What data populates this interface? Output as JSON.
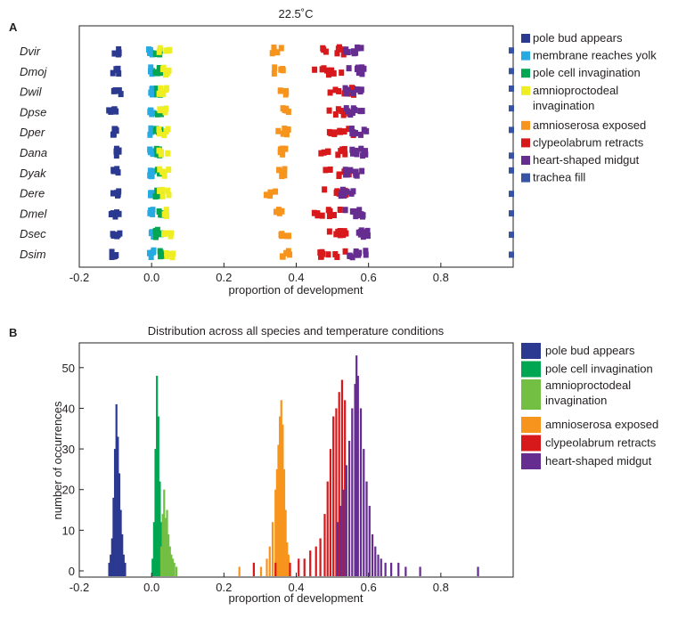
{
  "chart_data": [
    {
      "panel": "A",
      "type": "scatter",
      "title": "22.5˚C",
      "xlabel": "proportion of development",
      "ylabel": "",
      "xlim": [
        -0.2,
        1.0
      ],
      "xticks": [
        -0.2,
        0.0,
        0.2,
        0.4,
        0.6,
        0.8
      ],
      "xtick_labels": [
        "-0.2",
        "0.0",
        "0.2",
        "0.4",
        "0.6",
        "0.8"
      ],
      "species": [
        "Dvir",
        "Dmoj",
        "Dwil",
        "Dpse",
        "Dper",
        "Dana",
        "Dyak",
        "Dere",
        "Dmel",
        "Dsec",
        "Dsim"
      ],
      "series": [
        {
          "name": "pole bud appears",
          "color": "#2b3990",
          "centers": [
            -0.095,
            -0.1,
            -0.095,
            -0.11,
            -0.105,
            -0.095,
            -0.1,
            -0.095,
            -0.1,
            -0.1,
            -0.1
          ],
          "spread": 0.012
        },
        {
          "name": "membrane reaches yolk",
          "color": "#27aae1",
          "centers": [
            -0.002,
            0.0,
            0.0,
            0.0,
            0.0,
            0.0,
            0.0,
            0.0,
            0.0,
            0.0,
            0.0
          ],
          "spread": 0.006
        },
        {
          "name": "pole cell invagination",
          "color": "#00a651",
          "centers": [
            0.018,
            0.02,
            0.02,
            0.02,
            0.02,
            0.02,
            0.02,
            0.02,
            0.025,
            0.02,
            0.02
          ],
          "spread": 0.01
        },
        {
          "name": "amnioproctodeal invagination",
          "color": "#eeee22",
          "centers": [
            0.035,
            0.035,
            0.035,
            0.035,
            0.035,
            0.035,
            0.035,
            0.035,
            0.04,
            0.045,
            0.045
          ],
          "spread": 0.015
        },
        {
          "name": "amnioserosa exposed",
          "color": "#f7941d",
          "centers": [
            0.345,
            0.35,
            0.365,
            0.365,
            0.365,
            0.36,
            0.365,
            0.33,
            0.35,
            0.37,
            0.37
          ],
          "spread": 0.015
        },
        {
          "name": "clypeolabrum retracts",
          "color": "#d7191c",
          "centers": [
            0.5,
            0.49,
            0.52,
            0.515,
            0.525,
            0.5,
            0.515,
            0.5,
            0.49,
            0.53,
            0.505
          ],
          "spread": 0.04
        },
        {
          "name": "heart-shaped midgut",
          "color": "#662d91",
          "centers": [
            0.56,
            0.57,
            0.56,
            0.56,
            0.57,
            0.57,
            0.56,
            0.545,
            0.56,
            0.575,
            0.57
          ],
          "spread": 0.025
        },
        {
          "name": "trachea fill",
          "color": "#3953a4",
          "centers": [
            1.0,
            1.0,
            1.0,
            1.0,
            1.0,
            1.0,
            1.0,
            1.0,
            1.0,
            1.0,
            1.0
          ],
          "spread": 0.0
        }
      ]
    },
    {
      "panel": "B",
      "type": "bar",
      "subtype": "histogram",
      "title": "Distribution across all species and temperature conditions",
      "xlabel": "proportion of development",
      "ylabel": "number of occurrences",
      "xlim": [
        -0.2,
        1.0
      ],
      "ylim": [
        0,
        55
      ],
      "xticks": [
        -0.2,
        0.0,
        0.2,
        0.4,
        0.6,
        0.8
      ],
      "xtick_labels": [
        "-0.2",
        "0.0",
        "0.2",
        "0.4",
        "0.6",
        "0.8"
      ],
      "yticks": [
        0,
        10,
        20,
        30,
        40,
        50
      ],
      "ytick_labels": [
        "0",
        "10",
        "20",
        "30",
        "40",
        "50"
      ],
      "bin_width": 0.004,
      "series": [
        {
          "name": "pole bud appears",
          "color": "#2b3990",
          "bins": [
            [
              -0.12,
              2
            ],
            [
              -0.116,
              4
            ],
            [
              -0.112,
              8
            ],
            [
              -0.108,
              18
            ],
            [
              -0.104,
              30
            ],
            [
              -0.1,
              41
            ],
            [
              -0.096,
              33
            ],
            [
              -0.092,
              24
            ],
            [
              -0.088,
              15
            ],
            [
              -0.084,
              9
            ],
            [
              -0.08,
              4
            ],
            [
              -0.076,
              2
            ]
          ]
        },
        {
          "name": "pole cell invagination",
          "color": "#00a651",
          "bins": [
            [
              0.0,
              3
            ],
            [
              0.004,
              12
            ],
            [
              0.008,
              30
            ],
            [
              0.012,
              48
            ],
            [
              0.016,
              38
            ],
            [
              0.02,
              22
            ],
            [
              0.024,
              12
            ],
            [
              0.028,
              5
            ],
            [
              0.032,
              2
            ]
          ]
        },
        {
          "name": "amnioproctodeal invagination",
          "color": "#72bf44",
          "bins": [
            [
              0.024,
              6
            ],
            [
              0.028,
              14
            ],
            [
              0.032,
              20
            ],
            [
              0.036,
              13
            ],
            [
              0.04,
              15
            ],
            [
              0.044,
              9
            ],
            [
              0.048,
              6
            ],
            [
              0.052,
              4
            ],
            [
              0.056,
              3
            ],
            [
              0.06,
              2
            ],
            [
              0.066,
              1
            ]
          ]
        },
        {
          "name": "amnioserosa exposed",
          "color": "#f7941d",
          "bins": [
            [
              0.24,
              1
            ],
            [
              0.28,
              2
            ],
            [
              0.3,
              1
            ],
            [
              0.316,
              3
            ],
            [
              0.324,
              6
            ],
            [
              0.332,
              12
            ],
            [
              0.34,
              20
            ],
            [
              0.344,
              25
            ],
            [
              0.348,
              31
            ],
            [
              0.352,
              38
            ],
            [
              0.356,
              42
            ],
            [
              0.36,
              36
            ],
            [
              0.364,
              25
            ],
            [
              0.368,
              15
            ],
            [
              0.372,
              7
            ],
            [
              0.376,
              4
            ],
            [
              0.38,
              2
            ]
          ]
        },
        {
          "name": "clypeolabrum retracts",
          "color": "#d7191c",
          "bins": [
            [
              0.28,
              2
            ],
            [
              0.34,
              2
            ],
            [
              0.38,
              2
            ],
            [
              0.404,
              3
            ],
            [
              0.42,
              3
            ],
            [
              0.436,
              5
            ],
            [
              0.452,
              6
            ],
            [
              0.464,
              8
            ],
            [
              0.476,
              14
            ],
            [
              0.484,
              22
            ],
            [
              0.492,
              30
            ],
            [
              0.5,
              38
            ],
            [
              0.508,
              40
            ],
            [
              0.516,
              44
            ],
            [
              0.524,
              47
            ],
            [
              0.532,
              42
            ]
          ]
        },
        {
          "name": "heart-shaped midgut",
          "color": "#662d91",
          "bins": [
            [
              0.512,
              12
            ],
            [
              0.52,
              16
            ],
            [
              0.528,
              20
            ],
            [
              0.536,
              26
            ],
            [
              0.544,
              32
            ],
            [
              0.552,
              40
            ],
            [
              0.56,
              46
            ],
            [
              0.564,
              53
            ],
            [
              0.568,
              48
            ],
            [
              0.576,
              40
            ],
            [
              0.584,
              30
            ],
            [
              0.592,
              22
            ],
            [
              0.6,
              16
            ],
            [
              0.608,
              9
            ],
            [
              0.616,
              6
            ],
            [
              0.624,
              4
            ],
            [
              0.632,
              3
            ],
            [
              0.644,
              2
            ],
            [
              0.66,
              2
            ],
            [
              0.68,
              2
            ],
            [
              0.7,
              1
            ],
            [
              0.74,
              1
            ],
            [
              0.9,
              1
            ]
          ]
        }
      ]
    }
  ]
}
